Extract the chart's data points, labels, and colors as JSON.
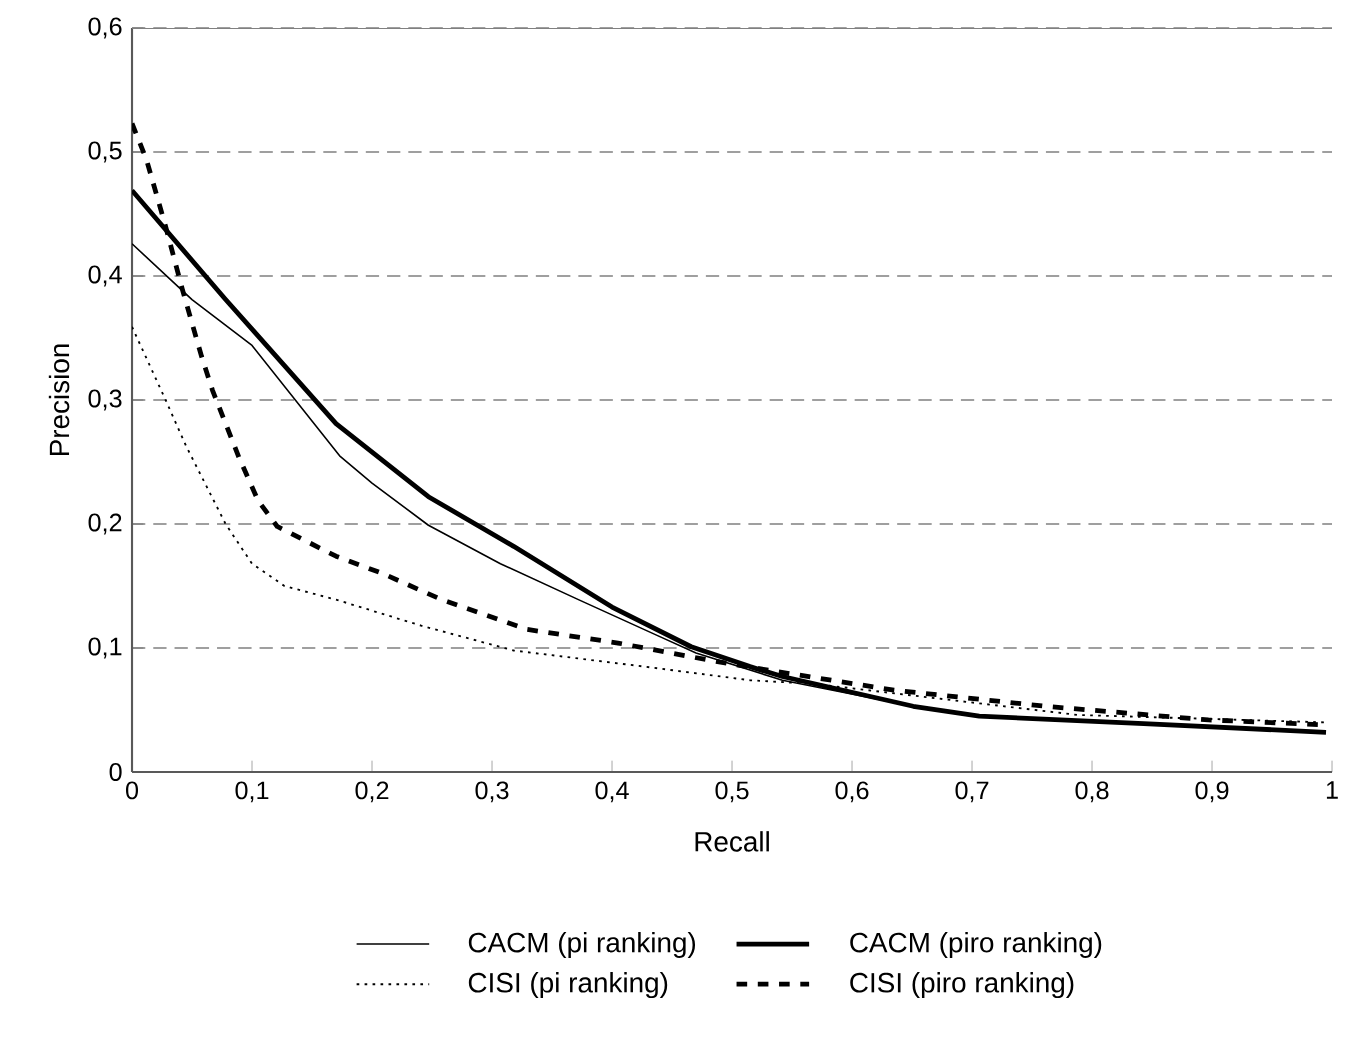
{
  "chart_data": {
    "type": "line",
    "xlabel": "Recall",
    "ylabel": "Precision",
    "xlim": [
      0,
      1
    ],
    "ylim": [
      0,
      0.6
    ],
    "xticks": [
      0,
      {
        "value": 0.1,
        "label": "0,1"
      },
      {
        "value": 0.2,
        "label": "0,2"
      },
      {
        "value": 0.3,
        "label": "0,3"
      },
      {
        "value": 0.4,
        "label": "0,4"
      },
      {
        "value": 0.5,
        "label": "0,5"
      },
      {
        "value": 0.6,
        "label": "0,6"
      },
      {
        "value": 0.7,
        "label": "0,7"
      },
      {
        "value": 0.8,
        "label": "0,8"
      },
      {
        "value": 0.9,
        "label": "0,9"
      },
      1
    ],
    "yticks": [
      0,
      {
        "value": 0.1,
        "label": "0,1"
      },
      {
        "value": 0.2,
        "label": "0,2"
      },
      {
        "value": 0.3,
        "label": "0,3"
      },
      {
        "value": 0.4,
        "label": "0,4"
      },
      {
        "value": 0.5,
        "label": "0,5"
      },
      {
        "value": 0.6,
        "label": "0,6"
      }
    ],
    "grid": "y",
    "legend": "bottom",
    "marker": "none",
    "series": [
      {
        "name": "CACM (pi ranking)",
        "color": "#000000",
        "line_style": "solid",
        "x": [
          0,
          0.05,
          0.1,
          0.173,
          0.2,
          0.247,
          0.307,
          0.372,
          0.438,
          0.47,
          0.542,
          0.651,
          0.706,
          0.843,
          0.995
        ],
        "values": [
          0.426,
          0.381,
          0.344,
          0.255,
          0.233,
          0.199,
          0.168,
          0.139,
          0.11,
          0.096,
          0.074,
          0.053,
          0.045,
          0.039,
          0.032
        ]
      },
      {
        "name": "CACM (piro ranking)",
        "color": "#000000",
        "line_style": "solid",
        "x": [
          0,
          0.078,
          0.17,
          0.247,
          0.318,
          0.4,
          0.466,
          0.515,
          0.542,
          0.651,
          0.706,
          0.843,
          0.995
        ],
        "values": [
          0.469,
          0.381,
          0.281,
          0.222,
          0.182,
          0.133,
          0.101,
          0.085,
          0.077,
          0.053,
          0.045,
          0.039,
          0.032
        ]
      },
      {
        "name": "CISI (pi ranking)",
        "color": "#000000",
        "line_style": "dotted",
        "x": [
          0,
          0.028,
          0.045,
          0.078,
          0.1,
          0.127,
          0.17,
          0.241,
          0.318,
          0.427,
          0.515,
          0.569,
          0.788,
          0.995
        ],
        "values": [
          0.359,
          0.3,
          0.263,
          0.2,
          0.168,
          0.15,
          0.139,
          0.118,
          0.098,
          0.085,
          0.074,
          0.071,
          0.046,
          0.04
        ]
      },
      {
        "name": "CISI (piro ranking)",
        "color": "#000000",
        "line_style": "dashed",
        "x": [
          0,
          0.012,
          0.028,
          0.042,
          0.058,
          0.067,
          0.089,
          0.105,
          0.121,
          0.17,
          0.209,
          0.258,
          0.329,
          0.405,
          0.482,
          0.531,
          0.635,
          0.761,
          0.897,
          0.995
        ],
        "values": [
          0.523,
          0.494,
          0.44,
          0.389,
          0.335,
          0.308,
          0.254,
          0.219,
          0.198,
          0.174,
          0.16,
          0.139,
          0.115,
          0.104,
          0.09,
          0.082,
          0.066,
          0.053,
          0.042,
          0.038
        ]
      }
    ]
  }
}
